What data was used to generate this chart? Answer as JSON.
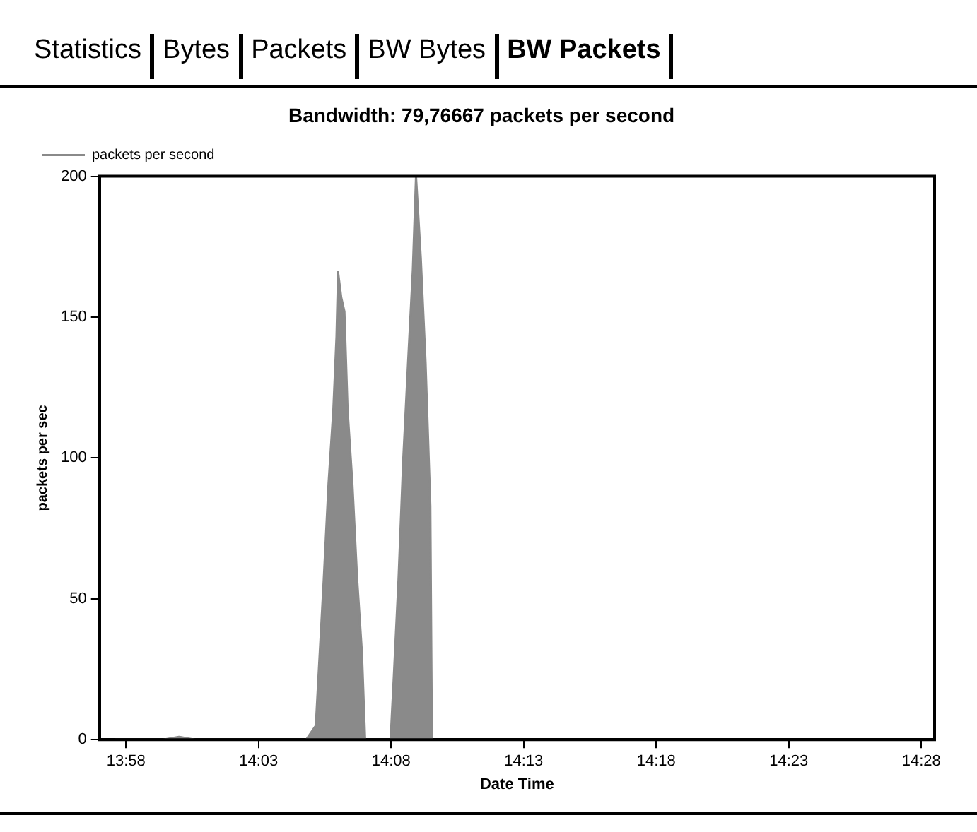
{
  "chart_data": {
    "type": "area",
    "title": "Bandwidth: 79,76667 packets per second",
    "xlabel": "Date Time",
    "ylabel": "packets per sec",
    "annotations": [
      "Statistics",
      "Bytes",
      "Packets",
      "BW Bytes",
      "BW Packets"
    ],
    "x": [
      13.96,
      13.99,
      14.0,
      14.01,
      14.03,
      14.06,
      14.08,
      14.086,
      14.091,
      14.094,
      14.097,
      14.099,
      14.1,
      14.102,
      14.104,
      14.106,
      14.109,
      14.112,
      14.115,
      14.117,
      14.12,
      14.13,
      14.133,
      14.135,
      14.138,
      14.141,
      14.144,
      14.147,
      14.149,
      14.152,
      14.155,
      14.158,
      14.159
    ],
    "series": [
      {
        "name": "packets per second",
        "color": "#8a8a8a",
        "values": [
          0,
          0,
          1,
          0,
          0,
          0,
          0,
          5,
          57,
          91,
          117,
          143,
          166,
          157,
          152,
          117,
          91,
          57,
          31,
          0,
          0,
          0,
          0,
          22,
          57,
          100,
          134,
          167,
          200,
          171,
          134,
          83,
          0
        ]
      }
    ],
    "xlim": [
      13.95,
      14.475
    ],
    "xticks": [
      {
        "value": 13.96667,
        "label": "13:58"
      },
      {
        "value": 14.05,
        "label": "14:03"
      },
      {
        "value": 14.13333,
        "label": "14:08"
      },
      {
        "value": 14.21667,
        "label": "14:13"
      },
      {
        "value": 14.3,
        "label": "14:18"
      },
      {
        "value": 14.38333,
        "label": "14:23"
      },
      {
        "value": 14.46667,
        "label": "14:28"
      }
    ],
    "ylim": [
      0,
      200
    ],
    "yticks": [
      0,
      50,
      100,
      150,
      200
    ],
    "grid": false,
    "legend": "top left",
    "marker": "none",
    "line_style": "solid"
  }
}
